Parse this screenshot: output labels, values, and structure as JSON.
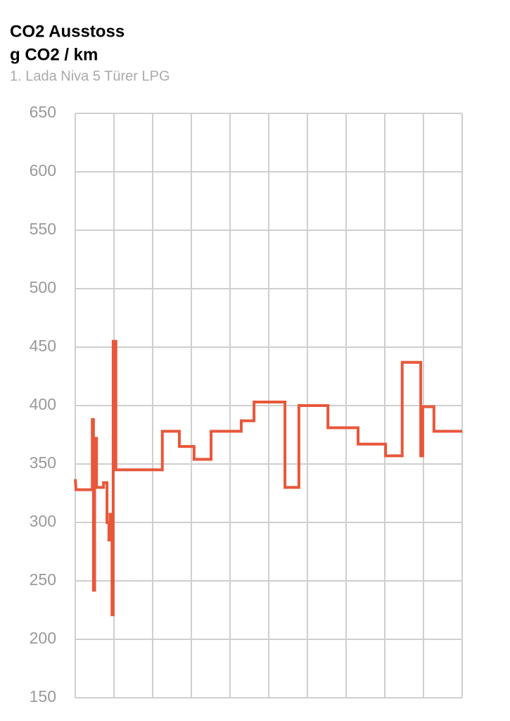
{
  "chart_data": {
    "type": "line",
    "title": "CO2 Ausstoss",
    "ylabel": "g CO2 / km",
    "subtitle": "1. Lada Niva 5 Türer LPG",
    "color": "#e8573a",
    "x": [
      0,
      0.02,
      0.44,
      0.44,
      0.47,
      0.47,
      0.5,
      0.5,
      0.55,
      0.55,
      0.73,
      0.73,
      0.82,
      0.82,
      0.87,
      0.87,
      0.9,
      0.9,
      0.95,
      0.95,
      0.98,
      0.98,
      1.05,
      1.05,
      2.25,
      2.25,
      2.69,
      2.69,
      3.07,
      3.07,
      3.51,
      3.51,
      4.29,
      4.29,
      4.62,
      4.62,
      5.42,
      5.42,
      5.78,
      5.78,
      6.53,
      6.53,
      7.31,
      7.31,
      8.02,
      8.02,
      8.45,
      8.45,
      8.93,
      8.93,
      8.98,
      8.98,
      9.27,
      9.27,
      10
    ],
    "values": [
      337,
      328,
      328,
      388,
      388,
      242,
      242,
      372,
      372,
      330,
      330,
      334,
      334,
      300,
      300,
      285,
      285,
      307,
      307,
      221,
      221,
      455,
      455,
      345,
      345,
      378,
      378,
      365,
      365,
      354,
      354,
      378,
      378,
      387,
      387,
      403,
      403,
      330,
      330,
      400,
      400,
      381,
      381,
      367,
      367,
      357,
      357,
      437,
      437,
      357,
      357,
      399,
      399,
      378,
      378
    ],
    "xlim": [
      0,
      10
    ],
    "xgrid": [
      0,
      1,
      2,
      3,
      4,
      5,
      6,
      7,
      8,
      9,
      10
    ],
    "ylim": [
      150,
      650
    ],
    "yticks": [
      150,
      200,
      250,
      300,
      350,
      400,
      450,
      500,
      550,
      600,
      650
    ],
    "grid": true
  }
}
